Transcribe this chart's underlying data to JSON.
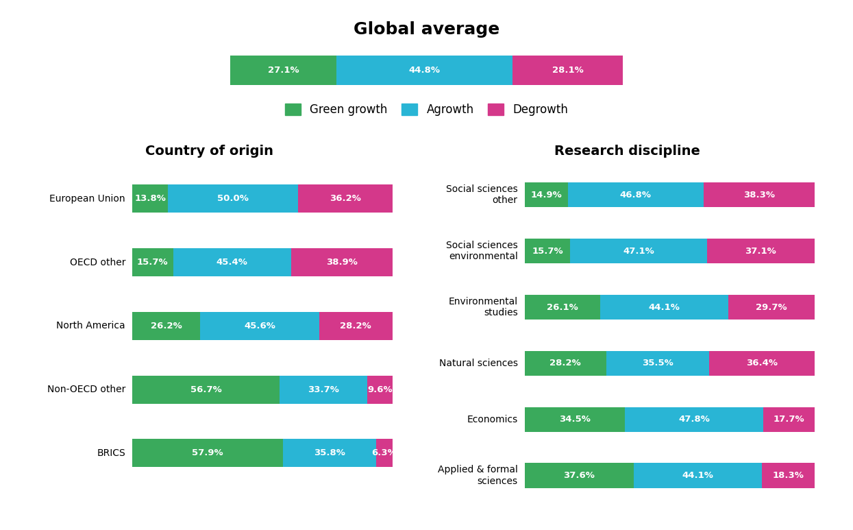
{
  "title": "Global average",
  "global": [
    27.1,
    44.8,
    28.1
  ],
  "colors": [
    "#3aaa5c",
    "#29b5d5",
    "#d4388a"
  ],
  "legend_labels": [
    "Green growth",
    "Agrowth",
    "Degrowth"
  ],
  "country_title": "Country of origin",
  "country_categories": [
    "European Union",
    "OECD other",
    "North America",
    "Non-OECD other",
    "BRICS"
  ],
  "country_data": [
    [
      13.8,
      50.0,
      36.2
    ],
    [
      15.7,
      45.4,
      38.9
    ],
    [
      26.2,
      45.6,
      28.2
    ],
    [
      56.7,
      33.7,
      9.6
    ],
    [
      57.9,
      35.8,
      6.3
    ]
  ],
  "discipline_title": "Research discipline",
  "discipline_categories": [
    "Social sciences\nother",
    "Social sciences\nenvironmental",
    "Environmental\nstudies",
    "Natural sciences",
    "Economics",
    "Applied & formal\nsciences"
  ],
  "discipline_data": [
    [
      14.9,
      46.8,
      38.3
    ],
    [
      15.7,
      47.1,
      37.1
    ],
    [
      26.1,
      44.1,
      29.7
    ],
    [
      28.2,
      35.5,
      36.4
    ],
    [
      34.5,
      47.8,
      17.7
    ],
    [
      37.6,
      44.1,
      18.3
    ]
  ],
  "bar_bg_color": "#e8e8e8",
  "bar_text_color": "#ffffff",
  "bar_fontsize": 9.5,
  "label_fontsize": 10,
  "title_fontsize": 18,
  "subtitle_fontsize": 14,
  "legend_fontsize": 12
}
